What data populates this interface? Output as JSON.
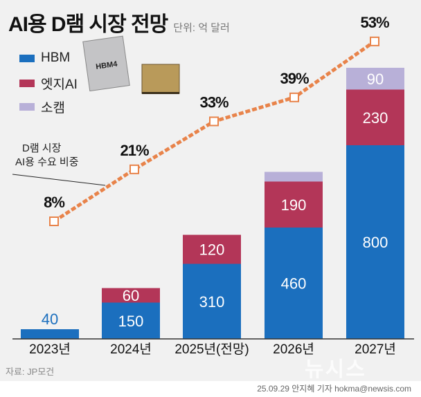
{
  "header": {
    "title": "AI용 D램 시장 전망",
    "unit": "단위: 억 달러"
  },
  "chip_label": "HBM4",
  "annotation": [
    "D램 시장",
    "AI용 수요 비중"
  ],
  "footer": {
    "source": "자료: JP모건",
    "credit": "25.09.29 안지혜 기자 hokma@newsis.com",
    "watermark": "뉴시스"
  },
  "chart_data": {
    "type": "bar",
    "stacked": true,
    "categories": [
      "2023년",
      "2024년",
      "2025년(전망)",
      "2026년",
      "2027년"
    ],
    "series": [
      {
        "name": "HBM",
        "values": [
          40,
          150,
          310,
          460,
          800
        ],
        "color": "#1b6fbe"
      },
      {
        "name": "엣지AI",
        "values": [
          0,
          60,
          120,
          190,
          230
        ],
        "color": "#b33658"
      },
      {
        "name": "소캠",
        "values": [
          0,
          0,
          0,
          null,
          90
        ],
        "color": "#b8b0d8"
      }
    ],
    "segment_labels_shown": [
      [
        true,
        false,
        false
      ],
      [
        true,
        true,
        false
      ],
      [
        true,
        true,
        false
      ],
      [
        true,
        true,
        false
      ],
      [
        true,
        true,
        true
      ]
    ],
    "unlabeled_socamm_2026_approx": 40,
    "line": {
      "name": "D램 시장 AI용 수요 비중",
      "values": [
        8,
        21,
        33,
        39,
        53
      ],
      "labels": [
        "8%",
        "21%",
        "33%",
        "39%",
        "53%"
      ],
      "color": "#e8834a",
      "style": "dashed"
    },
    "legend": [
      "HBM",
      "엣지AI",
      "소캠"
    ],
    "legend_position": "top-left",
    "grid": false
  }
}
